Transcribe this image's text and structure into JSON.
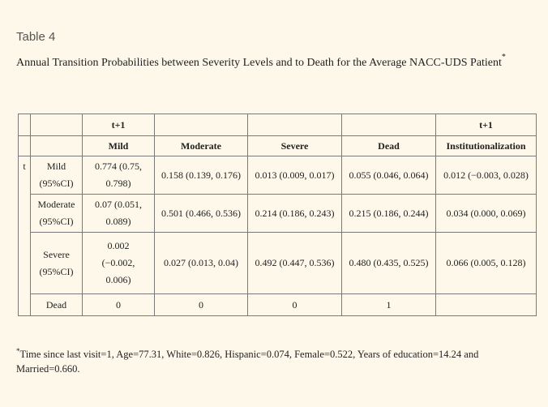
{
  "table_label": "Table 4",
  "caption": "Annual Transition Probabilities between Severity Levels and to Death for the Average NACC-UDS Patient",
  "caption_mark": "*",
  "header": {
    "row1": [
      "t+1",
      "t+1"
    ],
    "columns": [
      "Mild",
      "Moderate",
      "Severe",
      "Dead",
      "Institutionalization"
    ]
  },
  "t_label": "t",
  "rows": [
    {
      "label": "Mild",
      "sublabel": "(95%CI)",
      "cells": [
        "0.774 (0.75, 0.798)",
        "0.158 (0.139, 0.176)",
        "0.013 (0.009, 0.017)",
        "0.055 (0.046, 0.064)",
        "0.012 (−0.003, 0.028)"
      ]
    },
    {
      "label": "Moderate",
      "sublabel": "(95%CI)",
      "cells": [
        "0.07 (0.051, 0.089)",
        "0.501 (0.466, 0.536)",
        "0.214 (0.186, 0.243)",
        "0.215 (0.186, 0.244)",
        "0.034 (0.000, 0.069)"
      ]
    },
    {
      "label": "Severe",
      "sublabel": "(95%CI)",
      "cells": [
        "0.002 (−0.002, 0.006)",
        "0.027 (0.013, 0.04)",
        "0.492 (0.447, 0.536)",
        "0.480 (0.435, 0.525)",
        "0.066 (0.005, 0.128)"
      ]
    },
    {
      "label": "Dead",
      "sublabel": "",
      "cells": [
        "0",
        "0",
        "0",
        "1",
        ""
      ]
    }
  ],
  "footnote_mark": "*",
  "footnote": "Time since last visit=1, Age=77.31, White=0.826, Hispanic=0.074, Female=0.522, Years of education=14.24 and Married=0.660."
}
